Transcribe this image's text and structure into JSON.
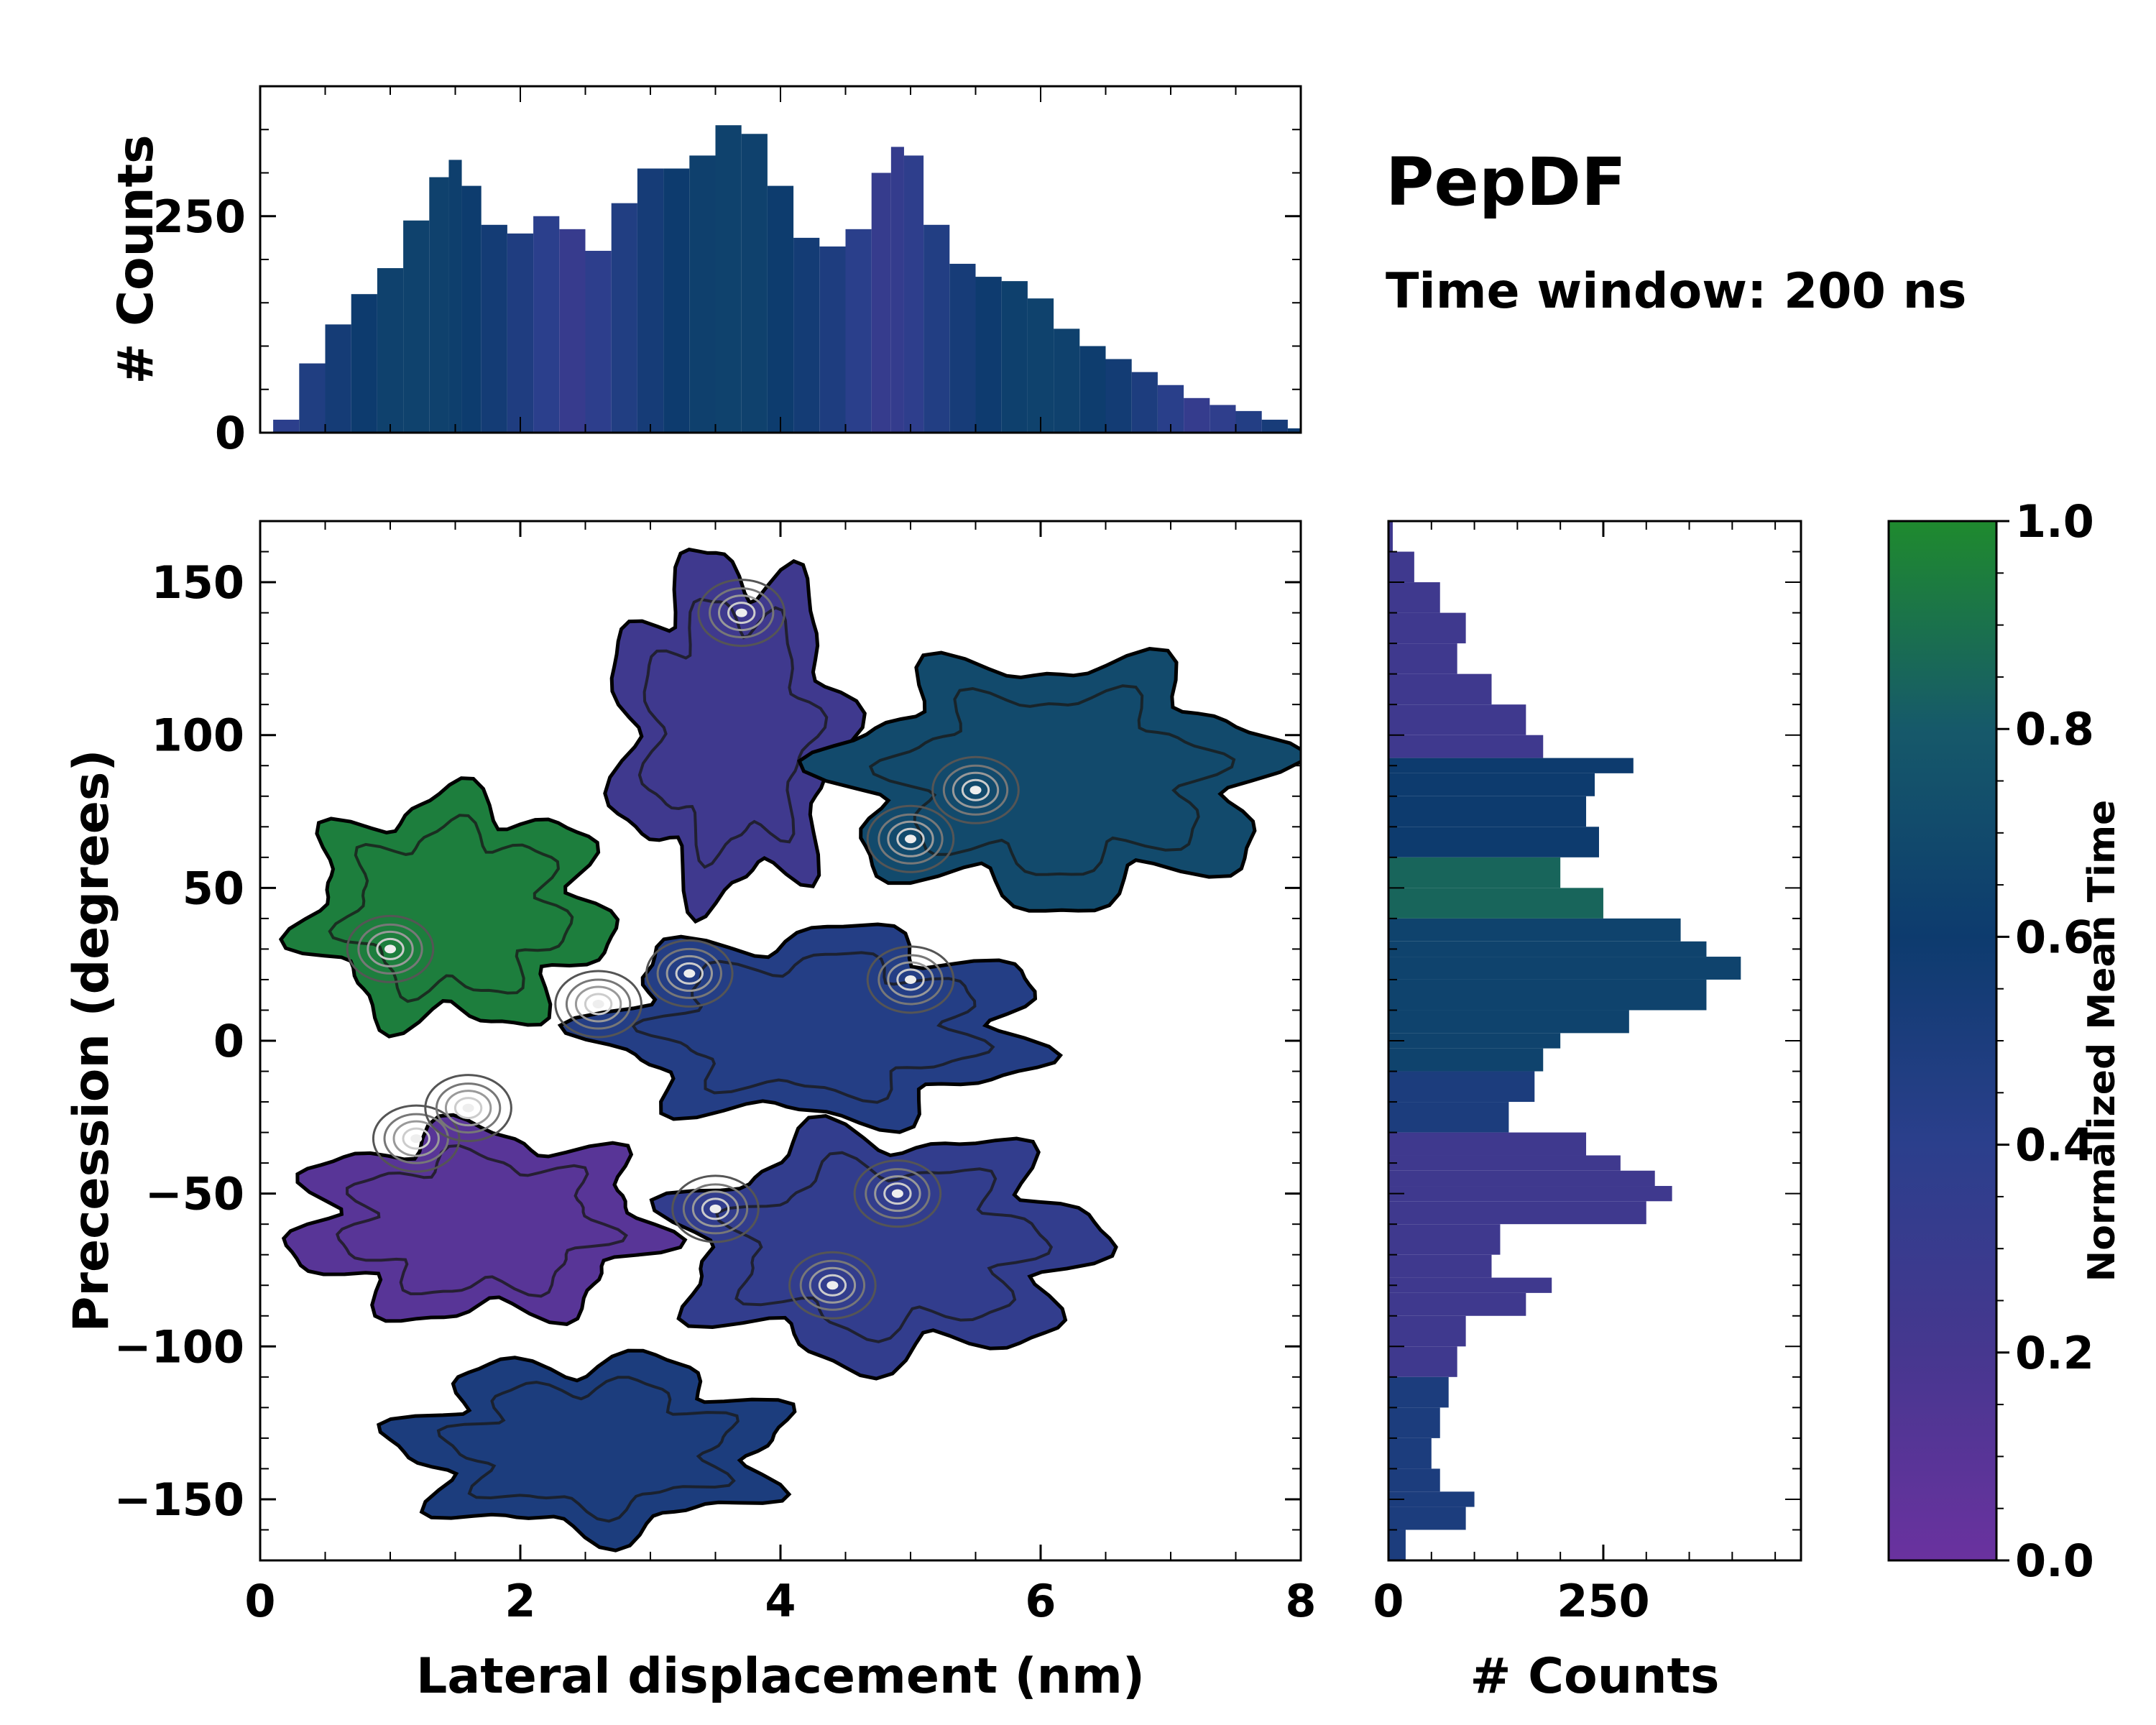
{
  "title": "PepDF",
  "subtitle": "Time window: 200 ns",
  "chart_data": [
    {
      "id": "main-heatmap",
      "type": "heatmap",
      "xlabel": "Lateral displacement (nm)",
      "ylabel": "Precession (degrees)",
      "xlim": [
        0,
        8
      ],
      "ylim": [
        -170,
        170
      ],
      "xticks": [
        0,
        2,
        4,
        6,
        8
      ],
      "xtick_labels": [
        "0",
        "2",
        "4",
        "6",
        "8"
      ],
      "yticks": [
        -150,
        -100,
        -50,
        0,
        50,
        100,
        150
      ],
      "ytick_labels": [
        "−150",
        "−100",
        "−50",
        "0",
        "50",
        "100",
        "150"
      ],
      "value_label": "Normalized Mean Time",
      "regions": [
        {
          "name": "upper-left green lobe",
          "x": [
            0.2,
            2.8
          ],
          "y": [
            0,
            85
          ],
          "value": 0.95
        },
        {
          "name": "top purple arm",
          "x": [
            2.6,
            4.6
          ],
          "y": [
            40,
            165
          ],
          "value": 0.25
        },
        {
          "name": "upper-right teal lobe",
          "x": [
            4.2,
            8.0
          ],
          "y": [
            40,
            130
          ],
          "value": 0.7
        },
        {
          "name": "central blue band",
          "x": [
            2.4,
            6.2
          ],
          "y": [
            -30,
            40
          ],
          "value": 0.45
        },
        {
          "name": "lower-left violet lobe",
          "x": [
            0.1,
            3.2
          ],
          "y": [
            -95,
            -25
          ],
          "value": 0.1
        },
        {
          "name": "lower-right blue lobe",
          "x": [
            3.0,
            6.6
          ],
          "y": [
            -110,
            -25
          ],
          "value": 0.35
        },
        {
          "name": "bottom blue lobe",
          "x": [
            0.9,
            4.2
          ],
          "y": [
            -165,
            -100
          ],
          "value": 0.5
        }
      ],
      "density_peaks": [
        {
          "x": 5.5,
          "y": 82
        },
        {
          "x": 5.0,
          "y": 66
        },
        {
          "x": 3.3,
          "y": 22
        },
        {
          "x": 2.6,
          "y": 12
        },
        {
          "x": 1.2,
          "y": -32
        },
        {
          "x": 1.6,
          "y": -22
        },
        {
          "x": 4.9,
          "y": -50
        },
        {
          "x": 4.4,
          "y": -80
        },
        {
          "x": 3.5,
          "y": -55
        },
        {
          "x": 1.0,
          "y": 30
        },
        {
          "x": 5.0,
          "y": 20
        },
        {
          "x": 3.7,
          "y": 140
        }
      ]
    },
    {
      "id": "top-histogram",
      "type": "bar",
      "ylabel": "# Counts",
      "xlim": [
        0,
        8
      ],
      "ylim": [
        0,
        400
      ],
      "yticks": [
        0,
        250
      ],
      "ytick_labels": [
        "0",
        "250"
      ],
      "x": [
        0.2,
        0.4,
        0.6,
        0.8,
        1.0,
        1.2,
        1.4,
        1.5,
        1.6,
        1.8,
        2.0,
        2.2,
        2.4,
        2.6,
        2.8,
        3.0,
        3.2,
        3.4,
        3.6,
        3.8,
        4.0,
        4.2,
        4.4,
        4.6,
        4.8,
        4.9,
        5.0,
        5.2,
        5.4,
        5.6,
        5.8,
        6.0,
        6.2,
        6.4,
        6.6,
        6.8,
        7.0,
        7.2,
        7.4,
        7.6,
        7.8,
        8.0
      ],
      "values": [
        15,
        80,
        125,
        160,
        190,
        245,
        295,
        315,
        285,
        240,
        230,
        250,
        235,
        210,
        265,
        305,
        305,
        320,
        355,
        345,
        285,
        225,
        215,
        235,
        300,
        330,
        320,
        240,
        195,
        180,
        175,
        155,
        120,
        100,
        85,
        70,
        55,
        40,
        32,
        25,
        15,
        5
      ]
    },
    {
      "id": "right-histogram",
      "type": "bar",
      "orientation": "horizontal",
      "xlabel": "# Counts",
      "xlim": [
        0,
        480
      ],
      "xticks": [
        0,
        250
      ],
      "xtick_labels": [
        "0",
        "250"
      ],
      "ylim": [
        -170,
        170
      ],
      "y": [
        165,
        155,
        145,
        135,
        125,
        115,
        105,
        95,
        90,
        85,
        75,
        65,
        55,
        45,
        35,
        30,
        25,
        15,
        5,
        0,
        -5,
        -15,
        -25,
        -35,
        -40,
        -45,
        -50,
        -55,
        -65,
        -75,
        -80,
        -85,
        -95,
        -105,
        -115,
        -125,
        -135,
        -145,
        -150,
        -155,
        -165
      ],
      "values": [
        5,
        30,
        60,
        90,
        80,
        120,
        160,
        180,
        285,
        240,
        230,
        245,
        200,
        250,
        340,
        370,
        410,
        370,
        280,
        200,
        180,
        170,
        140,
        230,
        270,
        310,
        330,
        300,
        130,
        120,
        190,
        160,
        90,
        80,
        70,
        60,
        50,
        60,
        100,
        90,
        20
      ]
    },
    {
      "id": "colorbar",
      "type": "colorbar",
      "label": "Normalized Mean Time",
      "range": [
        0,
        1
      ],
      "ticks": [
        0.0,
        0.2,
        0.4,
        0.6,
        0.8,
        1.0
      ],
      "tick_labels": [
        "0.0",
        "0.2",
        "0.4",
        "0.6",
        "0.8",
        "1.0"
      ],
      "colors": [
        "#6a329f",
        "#46378f",
        "#2b3f8c",
        "#0d3b6e",
        "#16596a",
        "#1f8a2e"
      ]
    }
  ]
}
